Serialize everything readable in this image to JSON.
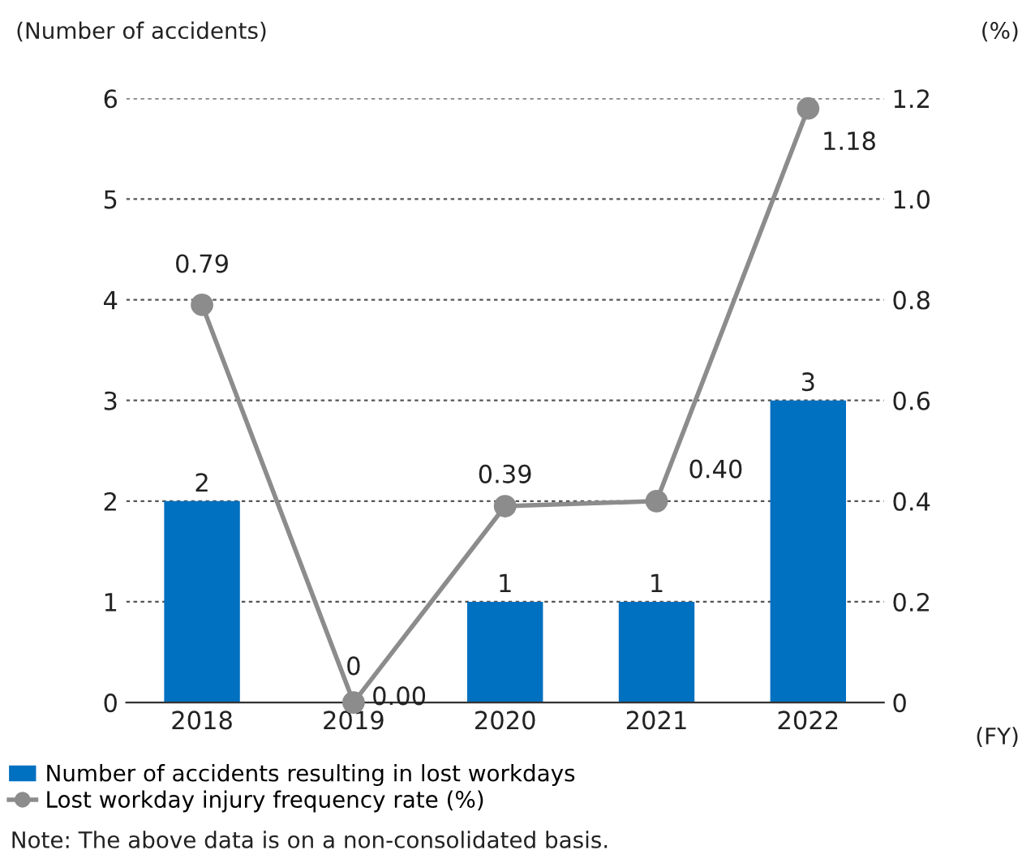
{
  "chart_data": {
    "type": "bar",
    "categories": [
      "2018",
      "2019",
      "2020",
      "2021",
      "2022"
    ],
    "series": [
      {
        "name": "Number of accidents resulting in lost workdays",
        "color": "#0070c0",
        "values": [
          2,
          0,
          1,
          1,
          3
        ]
      },
      {
        "name": "Lost workday injury frequency rate (%)",
        "type": "line",
        "axis": "y2",
        "color": "#8c8c8c",
        "marker": "circle",
        "values": [
          0.79,
          0.0,
          0.39,
          0.4,
          1.18
        ],
        "value_labels": [
          "0.79",
          "0.00",
          "0.39",
          "0.40",
          "1.18"
        ]
      }
    ],
    "data_labels": true,
    "ylabel": "(Number of accidents)",
    "y2label": "(%)",
    "xlabel": "(FY)",
    "ylim": [
      0,
      6
    ],
    "yticks": [
      0,
      1,
      2,
      3,
      4,
      5,
      6
    ],
    "y2lim": [
      0,
      1.2
    ],
    "y2ticks": [
      0,
      0.2,
      0.4,
      0.6,
      0.8,
      {
        "value": 1.0,
        "label": "1.0"
      },
      1.2
    ],
    "grid": "y",
    "legend": "bottom",
    "annotations": [
      "Note: The above data is on a non-consolidated basis."
    ]
  }
}
